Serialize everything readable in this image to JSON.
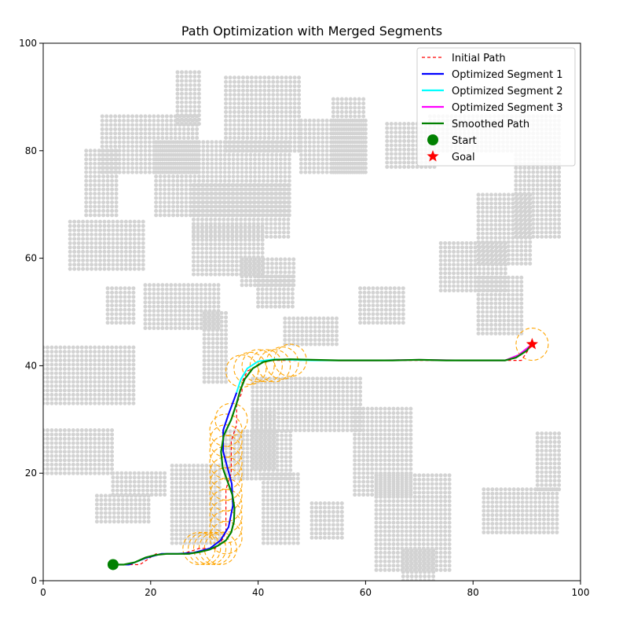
{
  "chart_data": {
    "type": "line",
    "title": "Path Optimization with Merged Segments",
    "xlabel": "",
    "ylabel": "",
    "xlim": [
      0,
      100
    ],
    "ylim": [
      0,
      100
    ],
    "xticks": [
      0,
      20,
      40,
      60,
      80,
      100
    ],
    "yticks": [
      0,
      20,
      40,
      60,
      80,
      100
    ],
    "grid": false,
    "legend_position": "top-right",
    "colors": {
      "obstacle": "#d3d3d3",
      "initial_path": "#ff0000",
      "segment1": "#0000ff",
      "segment2": "#00ffff",
      "segment3": "#ff00ff",
      "smoothed": "#008000",
      "circles": "#ffa500",
      "start": "#008000",
      "goal": "#ff0000"
    },
    "obstacles": [
      [
        25,
        85,
        29,
        95
      ],
      [
        34,
        80,
        48,
        94
      ],
      [
        48,
        76,
        60,
        86
      ],
      [
        54,
        76,
        60,
        90
      ],
      [
        11,
        76,
        29,
        87
      ],
      [
        8,
        68,
        14,
        80
      ],
      [
        21,
        68,
        46,
        82
      ],
      [
        28,
        64,
        46,
        74
      ],
      [
        28,
        57,
        41,
        66
      ],
      [
        37,
        55,
        47,
        60
      ],
      [
        40,
        51,
        47,
        57
      ],
      [
        5,
        58,
        19,
        67
      ],
      [
        12,
        48,
        17,
        55
      ],
      [
        19,
        47,
        33,
        55
      ],
      [
        30,
        37,
        34,
        50
      ],
      [
        45,
        44,
        55,
        49
      ],
      [
        59,
        48,
        67,
        55
      ],
      [
        0,
        33,
        17,
        44
      ],
      [
        0,
        20,
        13,
        28
      ],
      [
        39,
        28,
        59,
        38
      ],
      [
        34,
        19,
        46,
        28
      ],
      [
        39,
        21,
        43,
        32
      ],
      [
        58,
        16,
        69,
        32
      ],
      [
        10,
        11,
        20,
        16
      ],
      [
        13,
        16,
        23,
        20
      ],
      [
        24,
        7,
        33,
        22
      ],
      [
        41,
        7,
        48,
        20
      ],
      [
        50,
        8,
        56,
        15
      ],
      [
        62,
        2,
        76,
        20
      ],
      [
        67,
        0,
        73,
        6
      ],
      [
        82,
        9,
        96,
        17
      ],
      [
        92,
        17,
        96,
        28
      ],
      [
        64,
        77,
        73,
        85
      ],
      [
        72,
        80,
        96,
        87
      ],
      [
        88,
        64,
        96,
        80
      ],
      [
        81,
        59,
        91,
        72
      ],
      [
        74,
        54,
        86,
        63
      ],
      [
        81,
        46,
        89,
        57
      ]
    ],
    "series": [
      {
        "name": "Initial Path",
        "style": "dashed",
        "x": [
          13,
          18,
          21,
          23,
          26,
          29,
          31,
          32,
          33,
          34,
          34,
          34,
          34,
          35,
          35,
          35,
          36,
          36,
          36,
          37,
          37,
          38,
          40,
          41,
          43,
          45,
          46,
          47,
          50,
          55,
          60,
          65,
          70,
          75,
          80,
          85,
          86,
          89,
          91
        ],
        "y": [
          3,
          3,
          5,
          5,
          5,
          6,
          6,
          6,
          7,
          9,
          11,
          14,
          17,
          20,
          23,
          26,
          29,
          31,
          33,
          35,
          37,
          39,
          40,
          41,
          41,
          41,
          41,
          41,
          41,
          41,
          41,
          41,
          41,
          41,
          41,
          41,
          41,
          41,
          44
        ]
      },
      {
        "name": "Optimized Segment 1",
        "x": [
          13,
          16,
          19,
          22,
          25,
          28,
          31,
          33,
          34.5,
          35.3,
          35.1,
          34.3,
          33.5,
          33.5,
          34.5,
          36
        ],
        "y": [
          3,
          3,
          4.2,
          5,
          5,
          5.2,
          6,
          7.5,
          10,
          14,
          18,
          21,
          24,
          28,
          31,
          35
        ]
      },
      {
        "name": "Optimized Segment 2",
        "x": [
          36,
          36.8,
          38,
          40,
          43,
          46,
          50,
          55
        ],
        "y": [
          35,
          37.5,
          39.5,
          40.8,
          41.2,
          41.1,
          41,
          41
        ]
      },
      {
        "name": "Optimized Segment 3",
        "x": [
          55,
          62,
          70,
          78,
          84,
          86,
          88.5,
          91
        ],
        "y": [
          41,
          41,
          41.1,
          41,
          41,
          41,
          42,
          44
        ]
      },
      {
        "name": "Smoothed Path",
        "x": [
          13,
          15,
          17,
          19,
          21,
          23,
          25,
          27,
          29,
          31,
          32.5,
          34,
          35,
          35.5,
          35.6,
          35.2,
          34.3,
          33.4,
          33.1,
          33.6,
          35,
          36,
          36.7,
          37.5,
          39,
          41,
          43,
          46,
          50,
          55,
          60,
          65,
          70,
          75,
          80,
          84,
          86,
          88,
          90,
          91
        ],
        "y": [
          3,
          3,
          3.4,
          4.3,
          4.8,
          5,
          5,
          5,
          5.3,
          5.8,
          6.5,
          7.5,
          9,
          11,
          13.5,
          16,
          18.5,
          21,
          24,
          27,
          30,
          33,
          35.5,
          37.5,
          39.5,
          40.7,
          41.1,
          41.2,
          41.1,
          41,
          41,
          41,
          41.1,
          41,
          41,
          41,
          41,
          41.5,
          42.8,
          44
        ]
      }
    ],
    "circles": {
      "radius": 3,
      "centers": [
        [
          29,
          6
        ],
        [
          30,
          6
        ],
        [
          31,
          6
        ],
        [
          32,
          6
        ],
        [
          33,
          6
        ],
        [
          34,
          8
        ],
        [
          34,
          10
        ],
        [
          34,
          12
        ],
        [
          34,
          14
        ],
        [
          34,
          16
        ],
        [
          34,
          18
        ],
        [
          34,
          20
        ],
        [
          34,
          22
        ],
        [
          34,
          24
        ],
        [
          34,
          26
        ],
        [
          34,
          28
        ],
        [
          35,
          30
        ],
        [
          37,
          39
        ],
        [
          38.5,
          39.5
        ],
        [
          40,
          40
        ],
        [
          41.5,
          40
        ],
        [
          43,
          40
        ],
        [
          44.5,
          40.5
        ],
        [
          46,
          41
        ],
        [
          91,
          44
        ]
      ]
    },
    "start": {
      "name": "Start",
      "x": 13,
      "y": 3
    },
    "goal": {
      "name": "Goal",
      "x": 91,
      "y": 44
    },
    "legend": [
      "Initial Path",
      "Optimized Segment 1",
      "Optimized Segment 2",
      "Optimized Segment 3",
      "Smoothed Path",
      "Start",
      "Goal"
    ]
  }
}
